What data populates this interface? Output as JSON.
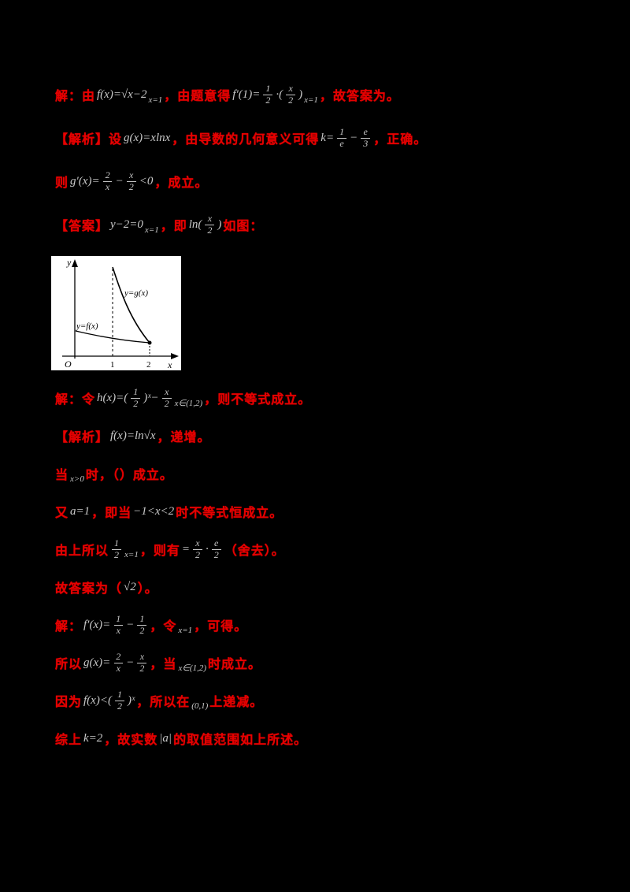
{
  "page": {
    "bg": "#000000",
    "red": "#e60000",
    "math": "#c9c9c9",
    "fig_bg": "#ffffff",
    "axis_color": "#000000"
  },
  "figure": {
    "y_label": "y",
    "x_label": "x",
    "origin": "O",
    "tick_1": "1",
    "tick_2": "2",
    "g_label": "y=g(x)",
    "f_label": "y=f(x)"
  },
  "lines_top": [
    {
      "segments": [
        {
          "t": "red",
          "v": "解：由"
        },
        {
          "t": "math",
          "v": "f(x)=√x−2"
        },
        {
          "t": "sub",
          "v": "x=1"
        },
        {
          "t": "red",
          "v": "，由题意得"
        },
        {
          "t": "math",
          "v": "f′(1)="
        },
        {
          "t": "frac",
          "n": "1",
          "d": "2"
        },
        {
          "t": "math",
          "v": "·("
        },
        {
          "t": "frac",
          "n": "x",
          "d": "2"
        },
        {
          "t": "math",
          "v": ")"
        },
        {
          "t": "sub",
          "v": "x=1"
        },
        {
          "t": "red",
          "v": "，故答案为。"
        }
      ]
    },
    {
      "segments": [
        {
          "t": "red",
          "v": "【解析】设"
        },
        {
          "t": "math",
          "v": "g(x)=xlnx"
        },
        {
          "t": "red",
          "v": "，由导数的几何意义可得"
        },
        {
          "t": "math",
          "v": "k="
        },
        {
          "t": "frac",
          "n": "1",
          "d": "e"
        },
        {
          "t": "math",
          "v": "−"
        },
        {
          "t": "frac",
          "n": "e",
          "d": "3"
        },
        {
          "t": "red",
          "v": "，正确。"
        }
      ]
    },
    {
      "segments": [
        {
          "t": "red",
          "v": "则"
        },
        {
          "t": "math",
          "v": "g′(x)="
        },
        {
          "t": "frac",
          "n": "2",
          "d": "x"
        },
        {
          "t": "math",
          "v": "−"
        },
        {
          "t": "frac",
          "n": "x",
          "d": "2"
        },
        {
          "t": "math",
          "v": "<0"
        },
        {
          "t": "red",
          "v": "，成立。"
        }
      ]
    },
    {
      "segments": [
        {
          "t": "red",
          "v": "【答案】"
        },
        {
          "t": "math",
          "v": "y−2=0"
        },
        {
          "t": "sub",
          "v": "x=1"
        },
        {
          "t": "red",
          "v": "，即"
        },
        {
          "t": "math",
          "v": "ln("
        },
        {
          "t": "frac",
          "n": "x",
          "d": "2"
        },
        {
          "t": "math",
          "v": ")"
        },
        {
          "t": "red",
          "v": "如图："
        }
      ]
    }
  ],
  "lines_bottom": [
    {
      "segments": [
        {
          "t": "red",
          "v": "解：令"
        },
        {
          "t": "math",
          "v": "h(x)=("
        },
        {
          "t": "frac",
          "n": "1",
          "d": "2"
        },
        {
          "t": "math",
          "v": ")ˣ−"
        },
        {
          "t": "frac",
          "n": "x",
          "d": "2"
        },
        {
          "t": "sub",
          "v": "x∈(1,2)"
        },
        {
          "t": "red",
          "v": "，则不等式成立。"
        }
      ]
    },
    {
      "segments": [
        {
          "t": "red",
          "v": "【解析】"
        },
        {
          "t": "math",
          "v": "f(x)=ln√x"
        },
        {
          "t": "red",
          "v": "，递增。"
        }
      ]
    },
    {
      "segments": [
        {
          "t": "red",
          "v": "当"
        },
        {
          "t": "sub",
          "v": "x>0"
        },
        {
          "t": "red",
          "v": "时，（）成立。"
        }
      ]
    },
    {
      "segments": [
        {
          "t": "red",
          "v": "又"
        },
        {
          "t": "math",
          "v": "a=1"
        },
        {
          "t": "red",
          "v": "，即当"
        },
        {
          "t": "math",
          "v": "−1<x<2"
        },
        {
          "t": "red",
          "v": "时不等式恒成立。"
        }
      ]
    },
    {
      "segments": [
        {
          "t": "red",
          "v": "由上所以"
        },
        {
          "t": "frac",
          "n": "1",
          "d": "2"
        },
        {
          "t": "sub",
          "v": "x=1"
        },
        {
          "t": "red",
          "v": "，则有"
        },
        {
          "t": "math",
          "v": "="
        },
        {
          "t": "frac",
          "n": "x",
          "d": "2"
        },
        {
          "t": "math",
          "v": "·"
        },
        {
          "t": "frac",
          "n": "e",
          "d": "2"
        },
        {
          "t": "red",
          "v": "（舍去）。"
        }
      ]
    },
    {
      "segments": [
        {
          "t": "red",
          "v": "故答案为（"
        },
        {
          "t": "math",
          "v": "√2"
        },
        {
          "t": "red",
          "v": "）。"
        }
      ]
    },
    {
      "segments": [
        {
          "t": "red",
          "v": "解："
        },
        {
          "t": "math",
          "v": "f′(x)="
        },
        {
          "t": "frac",
          "n": "1",
          "d": "x"
        },
        {
          "t": "math",
          "v": "−"
        },
        {
          "t": "frac",
          "n": "1",
          "d": "2"
        },
        {
          "t": "red",
          "v": "，令"
        },
        {
          "t": "sub",
          "v": "x=1"
        },
        {
          "t": "red",
          "v": "，可得。"
        }
      ]
    },
    {
      "segments": [
        {
          "t": "red",
          "v": "所以"
        },
        {
          "t": "math",
          "v": "g(x)="
        },
        {
          "t": "frac",
          "n": "2",
          "d": "x"
        },
        {
          "t": "math",
          "v": "−"
        },
        {
          "t": "frac",
          "n": "x",
          "d": "2"
        },
        {
          "t": "red",
          "v": "，当"
        },
        {
          "t": "sub",
          "v": "x∈(1,2)"
        },
        {
          "t": "red",
          "v": "时成立。"
        }
      ]
    },
    {
      "segments": [
        {
          "t": "red",
          "v": "因为"
        },
        {
          "t": "math",
          "v": "f(x)<("
        },
        {
          "t": "frac",
          "n": "1",
          "d": "2"
        },
        {
          "t": "math",
          "v": ")ˣ"
        },
        {
          "t": "red",
          "v": "，所以在"
        },
        {
          "t": "sub",
          "v": "(0,1)"
        },
        {
          "t": "red",
          "v": "上递减。"
        }
      ]
    },
    {
      "segments": [
        {
          "t": "red",
          "v": "综上"
        },
        {
          "t": "math",
          "v": "k=2"
        },
        {
          "t": "red",
          "v": "，故实数"
        },
        {
          "t": "math",
          "v": "|a|"
        },
        {
          "t": "red",
          "v": "的取值范围如上所述。"
        }
      ]
    }
  ]
}
